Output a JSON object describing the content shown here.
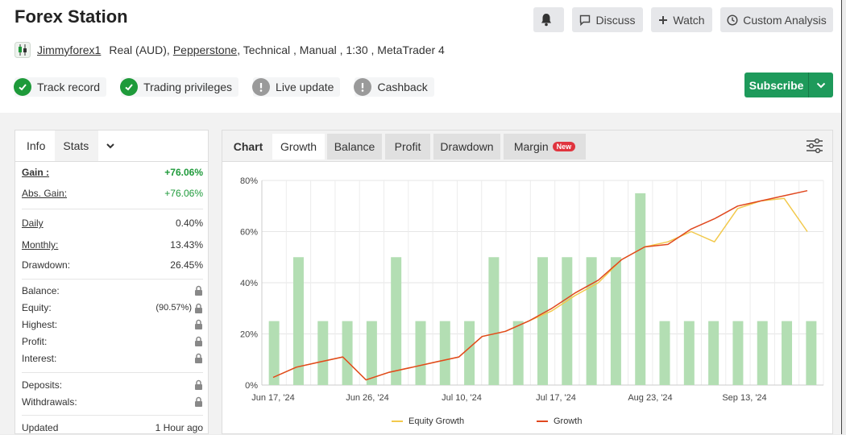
{
  "header": {
    "title": "Forex Station",
    "buttons": {
      "discuss": "Discuss",
      "watch": "Watch",
      "custom_analysis": "Custom Analysis"
    }
  },
  "account": {
    "username": "Jimmyforex1",
    "type": "Real (AUD),",
    "broker": "Pepperstone",
    "details": ", Technical , Manual , 1:30 , MetaTrader 4"
  },
  "badges": [
    {
      "label": "Track record",
      "status": "verified",
      "color": "#1e9a3a"
    },
    {
      "label": "Trading privileges",
      "status": "verified",
      "color": "#1e9a3a"
    },
    {
      "label": "Live update",
      "status": "warning",
      "color": "#9a9a9a"
    },
    {
      "label": "Cashback",
      "status": "warning",
      "color": "#9a9a9a"
    }
  ],
  "subscribe": {
    "label": "Subscribe"
  },
  "side_tabs": {
    "info": "Info",
    "stats": "Stats"
  },
  "stats": {
    "gain": {
      "label": "Gain :",
      "value": "+76.06%"
    },
    "abs_gain": {
      "label": "Abs. Gain:",
      "value": "+76.06%"
    },
    "daily": {
      "label": "Daily",
      "value": "0.40%"
    },
    "monthly": {
      "label": "Monthly:",
      "value": "13.43%"
    },
    "drawdown": {
      "label": "Drawdown:",
      "value": "26.45%"
    },
    "balance": {
      "label": "Balance:"
    },
    "equity": {
      "label": "Equity:",
      "value": "(90.57%)"
    },
    "highest": {
      "label": "Highest:"
    },
    "profit": {
      "label": "Profit:"
    },
    "interest": {
      "label": "Interest:"
    },
    "deposits": {
      "label": "Deposits:"
    },
    "withdrawals": {
      "label": "Withdrawals:"
    },
    "updated": {
      "label": "Updated",
      "value": "1 Hour ago"
    }
  },
  "chart_tabs": {
    "chart": "Chart",
    "growth": "Growth",
    "balance": "Balance",
    "profit": "Profit",
    "drawdown": "Drawdown",
    "margin": "Margin",
    "new_badge": "New"
  },
  "chart_data": {
    "type": "bar",
    "ylim": [
      0,
      80
    ],
    "y_ticks": [
      "0%",
      "20%",
      "40%",
      "60%",
      "80%"
    ],
    "x_ticks": [
      "Jun 17, '24",
      "Jun 26, '24",
      "Jul 10, '24",
      "Jul 17, '24",
      "Aug 23, '24",
      "Sep 13, '24"
    ],
    "grid": true,
    "legend_position": "bottom",
    "bar_color": "#b3deb3",
    "bars": [
      25,
      50,
      25,
      25,
      25,
      50,
      25,
      25,
      25,
      50,
      25,
      50,
      50,
      50,
      50,
      75,
      25,
      25,
      25,
      25,
      25,
      25,
      25
    ],
    "series": [
      {
        "name": "Equity Growth",
        "color": "#f2c94c",
        "values": [
          3,
          7,
          9,
          11,
          2,
          5,
          7,
          9,
          11,
          19,
          21,
          25,
          29,
          35,
          40,
          49,
          54,
          56,
          60,
          56,
          69,
          72,
          73,
          60
        ]
      },
      {
        "name": "Growth",
        "color": "#e0481f",
        "values": [
          3,
          7,
          9,
          11,
          2,
          5,
          7,
          9,
          11,
          19,
          21,
          25,
          30,
          36,
          41,
          49,
          54,
          55,
          61,
          65,
          70,
          72,
          74,
          76
        ]
      }
    ]
  }
}
